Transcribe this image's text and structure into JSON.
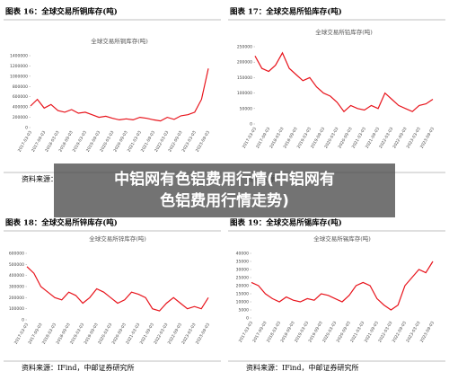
{
  "chart_data": [
    {
      "type": "line",
      "figure_label": "图表 16：全球交易所铜库存(吨)",
      "title": "全球交易所铜库存(吨)",
      "source": "资料来源：",
      "color": "#e8141c",
      "categories": [
        "2017-03-03",
        null,
        "2017-09-03",
        null,
        "2018-03-03",
        null,
        "2018-09-03",
        null,
        "2019-03-03",
        null,
        "2019-09-03",
        null,
        "2020-03-03",
        null,
        "2020-09-03",
        null,
        "2021-03-03",
        null,
        "2021-09-03",
        null,
        "2022-03-03",
        null,
        "2022-09-03",
        null,
        "2023-03-03",
        null,
        "2023-09-03"
      ],
      "values": [
        420000,
        550000,
        380000,
        450000,
        330000,
        300000,
        350000,
        280000,
        300000,
        250000,
        200000,
        220000,
        180000,
        150000,
        170000,
        150000,
        200000,
        180000,
        150000,
        130000,
        200000,
        160000,
        230000,
        250000,
        300000,
        550000,
        1150000
      ],
      "ylim": [
        0,
        1400000
      ],
      "yticks": [
        0,
        200000,
        400000,
        600000,
        800000,
        1000000,
        1200000,
        1400000
      ]
    },
    {
      "type": "line",
      "figure_label": "图表 17：全球交易所铅库存(吨)",
      "title": "全球交易所铅库存(吨)",
      "source": "资料来源：",
      "color": "#e8141c",
      "categories": [
        "2017-03-03",
        null,
        "2017-09-03",
        null,
        "2018-03-03",
        null,
        "2018-09-03",
        null,
        "2019-03-03",
        null,
        "2019-09-03",
        null,
        "2020-03-03",
        null,
        "2020-09-03",
        null,
        "2021-03-03",
        null,
        "2021-09-03",
        null,
        "2022-03-03",
        null,
        "2022-09-03",
        null,
        "2023-03-03",
        null,
        "2023-09-03"
      ],
      "values": [
        220000,
        180000,
        170000,
        190000,
        230000,
        180000,
        160000,
        140000,
        150000,
        120000,
        100000,
        90000,
        70000,
        40000,
        60000,
        50000,
        45000,
        60000,
        50000,
        100000,
        80000,
        60000,
        50000,
        40000,
        60000,
        65000,
        80000
      ],
      "ylim": [
        0,
        250000
      ],
      "yticks": [
        0,
        50000,
        100000,
        150000,
        200000,
        250000
      ]
    },
    {
      "type": "line",
      "figure_label": "图表 18：全球交易所锌库存(吨)",
      "title": "全球交易所锌库存(吨)",
      "source": "资料来源：IFind，中邮证券研究所",
      "color": "#e8141c",
      "categories": [
        "2017-03-03",
        null,
        "2017-09-03",
        null,
        "2018-03-03",
        null,
        "2018-09-03",
        null,
        "2019-03-03",
        null,
        "2019-09-03",
        null,
        "2020-03-03",
        null,
        "2020-09-03",
        null,
        "2021-03-03",
        null,
        "2021-09-03",
        null,
        "2022-03-03",
        null,
        "2022-09-03",
        null,
        "2023-03-03",
        null,
        "2023-09-03"
      ],
      "values": [
        480000,
        420000,
        300000,
        250000,
        200000,
        180000,
        250000,
        220000,
        150000,
        200000,
        280000,
        250000,
        200000,
        150000,
        180000,
        250000,
        230000,
        200000,
        100000,
        80000,
        150000,
        200000,
        150000,
        100000,
        120000,
        100000,
        200000
      ],
      "ylim": [
        0,
        600000
      ],
      "yticks": [
        0,
        100000,
        200000,
        300000,
        400000,
        500000,
        600000
      ]
    },
    {
      "type": "line",
      "figure_label": "图表 19：全球交易所锡库存(吨)",
      "title": "全球交易所锡库存(吨)",
      "source": "资料来源：IFind，中邮证券研究所",
      "color": "#e8141c",
      "categories": [
        "2017-03-03",
        null,
        "2017-09-03",
        null,
        "2018-03-03",
        null,
        "2018-09-03",
        null,
        "2019-03-03",
        null,
        "2019-09-03",
        null,
        "2020-03-03",
        null,
        "2020-09-03",
        null,
        "2021-03-03",
        null,
        "2021-09-03",
        null,
        "2022-03-03",
        null,
        "2022-09-03",
        null,
        "2023-03-03",
        null,
        "2023-09-03"
      ],
      "values": [
        22000,
        20000,
        15000,
        12000,
        10000,
        13000,
        11000,
        10000,
        12000,
        11000,
        15000,
        14000,
        12000,
        10000,
        14000,
        20000,
        22000,
        20000,
        12000,
        8000,
        5000,
        8000,
        20000,
        25000,
        30000,
        28000,
        35000
      ],
      "ylim": [
        0,
        40000
      ],
      "yticks": [
        0,
        5000,
        10000,
        15000,
        20000,
        25000,
        30000,
        35000,
        40000
      ]
    }
  ],
  "overlay_text": "中铝网有色铝费用行情(中铝网有色铝费用行情走势)"
}
